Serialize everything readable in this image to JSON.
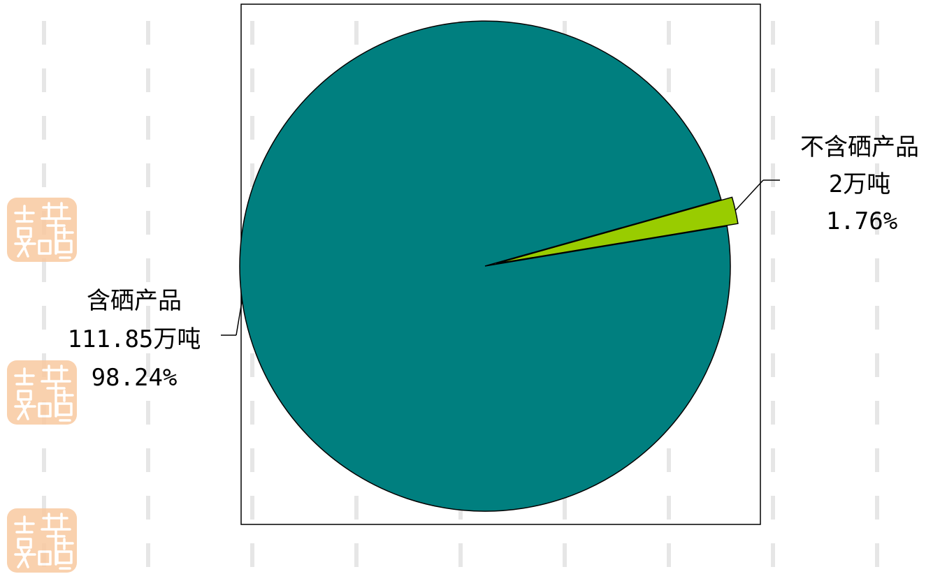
{
  "chart_data": {
    "type": "pie",
    "title": "",
    "slices": [
      {
        "name": "含硒产品",
        "value_text": "111.85万吨",
        "percent_text": "98.24%",
        "value": 111.85,
        "percent": 98.24,
        "color": "#007F7F"
      },
      {
        "name": "不含硒产品",
        "value_text": "2万吨",
        "percent_text": "1.76%",
        "value": 2,
        "percent": 1.76,
        "color": "#99CC00"
      }
    ],
    "legend": "none"
  },
  "watermark": {
    "seal_text": "吉祥如意",
    "seal_color": "#F9C9A0"
  },
  "background_pattern_color": "#E6E6E6",
  "plot_border_color": "#000000"
}
